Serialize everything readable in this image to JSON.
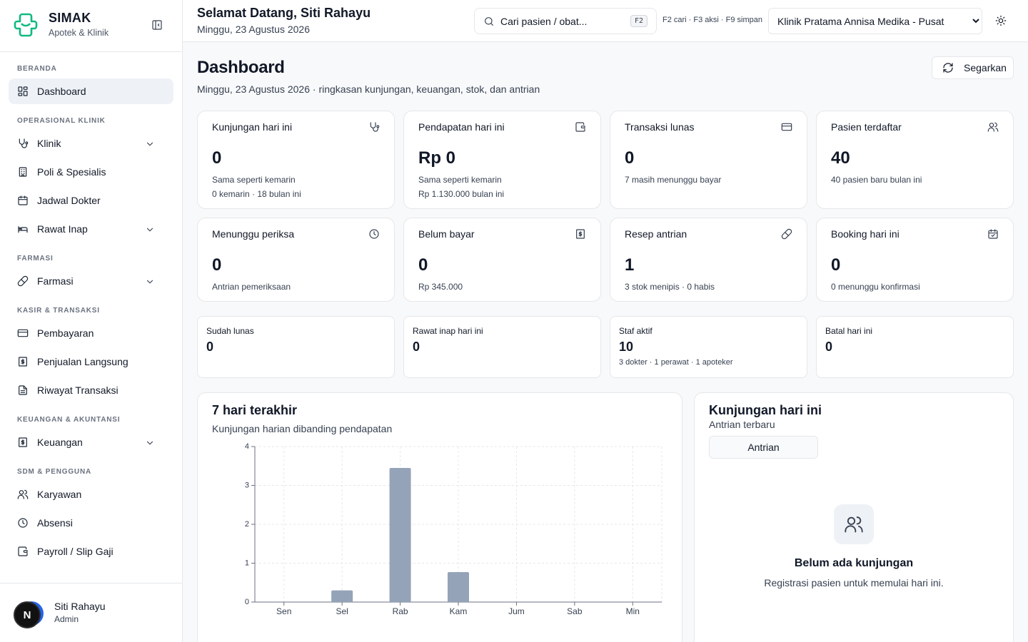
{
  "brand": {
    "title": "SIMAK",
    "subtitle": "Apotek & Klinik"
  },
  "sidebar": {
    "sections": [
      {
        "title": "BERANDA",
        "items": [
          {
            "label": "Dashboard",
            "icon": "dashboard-icon",
            "active": true
          }
        ]
      },
      {
        "title": "OPERASIONAL KLINIK",
        "items": [
          {
            "label": "Klinik",
            "icon": "stethoscope-icon",
            "expandable": true
          },
          {
            "label": "Poli & Spesialis",
            "icon": "building-icon"
          },
          {
            "label": "Jadwal Dokter",
            "icon": "calendar-icon"
          },
          {
            "label": "Rawat Inap",
            "icon": "bed-icon",
            "expandable": true
          }
        ]
      },
      {
        "title": "FARMASI",
        "items": [
          {
            "label": "Farmasi",
            "icon": "pill-icon",
            "expandable": true
          }
        ]
      },
      {
        "title": "KASIR & TRANSAKSI",
        "items": [
          {
            "label": "Pembayaran",
            "icon": "credit-card-icon"
          },
          {
            "label": "Penjualan Langsung",
            "icon": "receipt-icon"
          },
          {
            "label": "Riwayat Transaksi",
            "icon": "file-text-icon"
          }
        ]
      },
      {
        "title": "KEUANGAN & AKUNTANSI",
        "items": [
          {
            "label": "Keuangan",
            "icon": "receipt-icon",
            "expandable": true
          }
        ]
      },
      {
        "title": "SDM & PENGGUNA",
        "items": [
          {
            "label": "Karyawan",
            "icon": "users-icon"
          },
          {
            "label": "Absensi",
            "icon": "clock-icon"
          },
          {
            "label": "Payroll / Slip Gaji",
            "icon": "wallet-icon"
          }
        ]
      }
    ]
  },
  "user": {
    "initial": "N",
    "name": "Siti Rahayu",
    "role": "Admin"
  },
  "topbar": {
    "greeting": "Selamat Datang, Siti Rahayu",
    "date": "Minggu, 23 Agustus 2026",
    "search_placeholder": "Cari pasien / obat...",
    "search_kbd": "F2",
    "shortcuts": "F2 cari · F3 aksi · F9 simpan",
    "clinic": "Klinik Pratama Annisa Medika - Pusat"
  },
  "page": {
    "title": "Dashboard",
    "subtitle": "Minggu, 23 Agustus 2026 · ringkasan kunjungan, keuangan, stok, dan antrian",
    "refresh_label": "Segarkan"
  },
  "stats": [
    {
      "label": "Kunjungan hari ini",
      "value": "0",
      "note1": "Sama seperti kemarin",
      "note2": "0 kemarin · 18 bulan ini",
      "icon": "stethoscope-icon"
    },
    {
      "label": "Pendapatan hari ini",
      "value": "Rp 0",
      "note1": "Sama seperti kemarin",
      "note2": "Rp 1.130.000 bulan ini",
      "icon": "wallet-icon"
    },
    {
      "label": "Transaksi lunas",
      "value": "0",
      "note1": "7 masih menunggu bayar",
      "note2": "",
      "icon": "credit-card-icon"
    },
    {
      "label": "Pasien terdaftar",
      "value": "40",
      "note1": "40 pasien baru bulan ini",
      "note2": "",
      "icon": "users-icon"
    },
    {
      "label": "Menunggu periksa",
      "value": "0",
      "note1": "Antrian pemeriksaan",
      "note2": "",
      "icon": "clock-icon"
    },
    {
      "label": "Belum bayar",
      "value": "0",
      "note1": "Rp 345.000",
      "note2": "",
      "icon": "receipt-icon"
    },
    {
      "label": "Resep antrian",
      "value": "1",
      "note1": "3 stok menipis · 0 habis",
      "note2": "",
      "icon": "pill-icon"
    },
    {
      "label": "Booking hari ini",
      "value": "0",
      "note1": "0 menunggu konfirmasi",
      "note2": "",
      "icon": "calendar-check-icon"
    }
  ],
  "mini_stats": [
    {
      "label": "Sudah lunas",
      "value": "0",
      "note": ""
    },
    {
      "label": "Rawat inap hari ini",
      "value": "0",
      "note": ""
    },
    {
      "label": "Staf aktif",
      "value": "10",
      "note": "3 dokter · 1 perawat · 1 apoteker"
    },
    {
      "label": "Batal hari ini",
      "value": "0",
      "note": ""
    }
  ],
  "chart_card": {
    "title": "7 hari terakhir",
    "subtitle": "Kunjungan harian dibanding pendapatan"
  },
  "chart_data": {
    "type": "bar",
    "categories": [
      "Sen",
      "Sel",
      "Rab",
      "Kam",
      "Jum",
      "Sab",
      "Min"
    ],
    "values": [
      0,
      0.3,
      3.45,
      0.77,
      0,
      0,
      0
    ],
    "y_ticks": [
      0,
      1,
      2,
      3,
      4
    ],
    "ylim": [
      0,
      4
    ],
    "grid": true,
    "bar_color": "#94a3b8"
  },
  "visits": {
    "title": "Kunjungan hari ini",
    "subtitle": "Antrian terbaru",
    "tab_label": "Antrian",
    "empty_title": "Belum ada kunjungan",
    "empty_sub": "Registrasi pasien untuk memulai hari ini."
  },
  "colors": {
    "brand": "#10b981",
    "bar": "#94a3b8",
    "border": "#e5e7eb"
  }
}
